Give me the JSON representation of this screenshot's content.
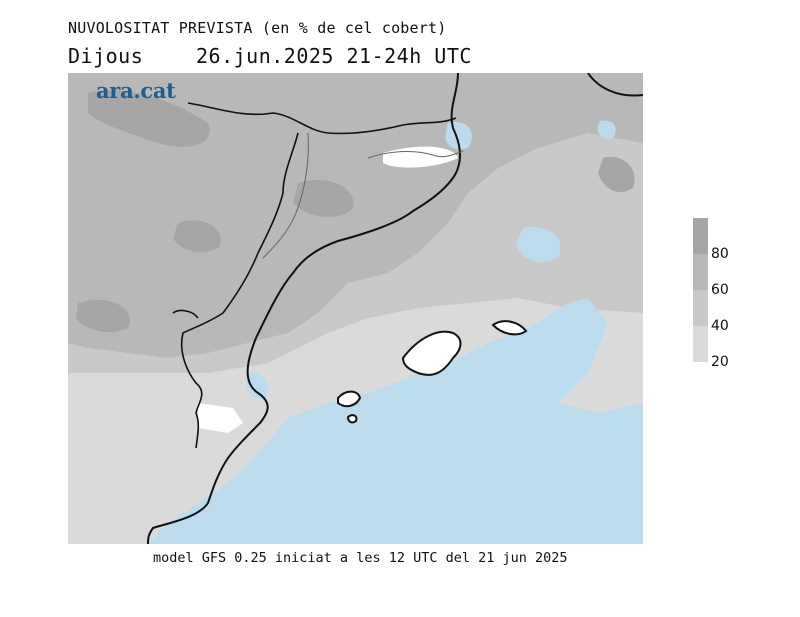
{
  "header": {
    "title": "NUVOLOSITAT PREVISTA (en % de cel cobert)",
    "day": "Dijous",
    "date_range": "26.jun.2025 21-24h UTC"
  },
  "logo": {
    "text": "ara.cat"
  },
  "footer": {
    "model_info": "model GFS 0.25 iniciat a les 12 UTC del 21 jun 2025"
  },
  "legend": {
    "labels": [
      "80",
      "60",
      "40",
      "20"
    ],
    "levels": [
      {
        "min": 80,
        "color": "#a6a6a6"
      },
      {
        "min": 60,
        "color": "#b8b8b8"
      },
      {
        "min": 40,
        "color": "#c9c9c9"
      },
      {
        "min": 20,
        "color": "#dadada"
      }
    ]
  },
  "map": {
    "sea_color": "#bcdbed",
    "land_clear_color": "#ffffff",
    "coastline_color": "#111111"
  }
}
